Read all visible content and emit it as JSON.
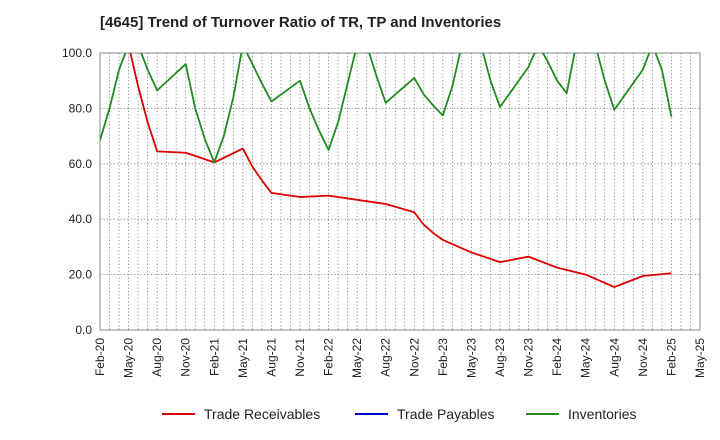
{
  "chart_data": {
    "type": "line",
    "title": "[4645]  Trend of Turnover Ratio of TR, TP and Inventories",
    "xlabel": "",
    "ylabel": "",
    "ylim": [
      0,
      100
    ],
    "yticks": [
      "0.0",
      "20.0",
      "40.0",
      "60.0",
      "80.0",
      "100.0"
    ],
    "xticks": [
      "Feb-20",
      "May-20",
      "Aug-20",
      "Nov-20",
      "Feb-21",
      "May-21",
      "Aug-21",
      "Nov-21",
      "Feb-22",
      "May-22",
      "Aug-22",
      "Nov-22",
      "Feb-23",
      "May-23",
      "Aug-23",
      "Nov-23",
      "Feb-24",
      "May-24",
      "Aug-24",
      "Nov-24",
      "Feb-25",
      "May-25"
    ],
    "grid": true,
    "legend_position": "bottom",
    "series": [
      {
        "name": "Trade Receivables",
        "color": "#dd0000",
        "points": [
          [
            "2020-04",
            103
          ],
          [
            "2020-05",
            103
          ],
          [
            "2020-06",
            88
          ],
          [
            "2020-07",
            75
          ],
          [
            "2020-08",
            64.5
          ],
          [
            "2020-11",
            64
          ],
          [
            "2021-02",
            60.5
          ],
          [
            "2021-05",
            65.5
          ],
          [
            "2021-06",
            59
          ],
          [
            "2021-07",
            54
          ],
          [
            "2021-08",
            49.5
          ],
          [
            "2021-11",
            48
          ],
          [
            "2022-02",
            48.5
          ],
          [
            "2022-05",
            47
          ],
          [
            "2022-08",
            45.5
          ],
          [
            "2022-11",
            42.5
          ],
          [
            "2022-12",
            38
          ],
          [
            "2023-01",
            35
          ],
          [
            "2023-02",
            32.5
          ],
          [
            "2023-05",
            28
          ],
          [
            "2023-08",
            24.5
          ],
          [
            "2023-11",
            26.5
          ],
          [
            "2024-02",
            22.5
          ],
          [
            "2024-05",
            20
          ],
          [
            "2024-08",
            15.5
          ],
          [
            "2024-11",
            19.5
          ],
          [
            "2025-02",
            20.5
          ]
        ]
      },
      {
        "name": "Trade Payables",
        "color": "#0000cc",
        "points": []
      },
      {
        "name": "Inventories",
        "color": "#228b22",
        "points": [
          [
            "2020-02",
            68.5
          ],
          [
            "2020-03",
            80
          ],
          [
            "2020-04",
            94
          ],
          [
            "2020-05",
            103
          ],
          [
            "2020-06",
            103
          ],
          [
            "2020-07",
            94
          ],
          [
            "2020-08",
            86.5
          ],
          [
            "2020-11",
            96
          ],
          [
            "2020-12",
            80
          ],
          [
            "2021-01",
            69
          ],
          [
            "2021-02",
            60.5
          ],
          [
            "2021-03",
            70
          ],
          [
            "2021-04",
            84
          ],
          [
            "2021-05",
            103
          ],
          [
            "2021-06",
            96
          ],
          [
            "2021-07",
            89
          ],
          [
            "2021-08",
            82.5
          ],
          [
            "2021-11",
            90
          ],
          [
            "2021-12",
            80
          ],
          [
            "2022-01",
            72
          ],
          [
            "2022-02",
            65
          ],
          [
            "2022-03",
            75
          ],
          [
            "2022-04",
            89
          ],
          [
            "2022-05",
            103
          ],
          [
            "2022-06",
            103
          ],
          [
            "2022-07",
            92
          ],
          [
            "2022-08",
            82
          ],
          [
            "2022-11",
            91
          ],
          [
            "2022-12",
            85
          ],
          [
            "2023-01",
            81
          ],
          [
            "2023-02",
            77.5
          ],
          [
            "2023-03",
            88
          ],
          [
            "2023-04",
            103
          ],
          [
            "2023-05",
            103
          ],
          [
            "2023-06",
            103
          ],
          [
            "2023-07",
            90
          ],
          [
            "2023-08",
            80.5
          ],
          [
            "2023-11",
            95
          ],
          [
            "2023-12",
            103
          ],
          [
            "2024-01",
            97
          ],
          [
            "2024-02",
            90
          ],
          [
            "2024-03",
            85.5
          ],
          [
            "2024-04",
            103
          ],
          [
            "2024-05",
            103
          ],
          [
            "2024-06",
            103
          ],
          [
            "2024-07",
            90
          ],
          [
            "2024-08",
            79.5
          ],
          [
            "2024-11",
            94
          ],
          [
            "2024-12",
            103
          ],
          [
            "2025-01",
            94
          ],
          [
            "2025-02",
            77
          ]
        ]
      }
    ]
  }
}
